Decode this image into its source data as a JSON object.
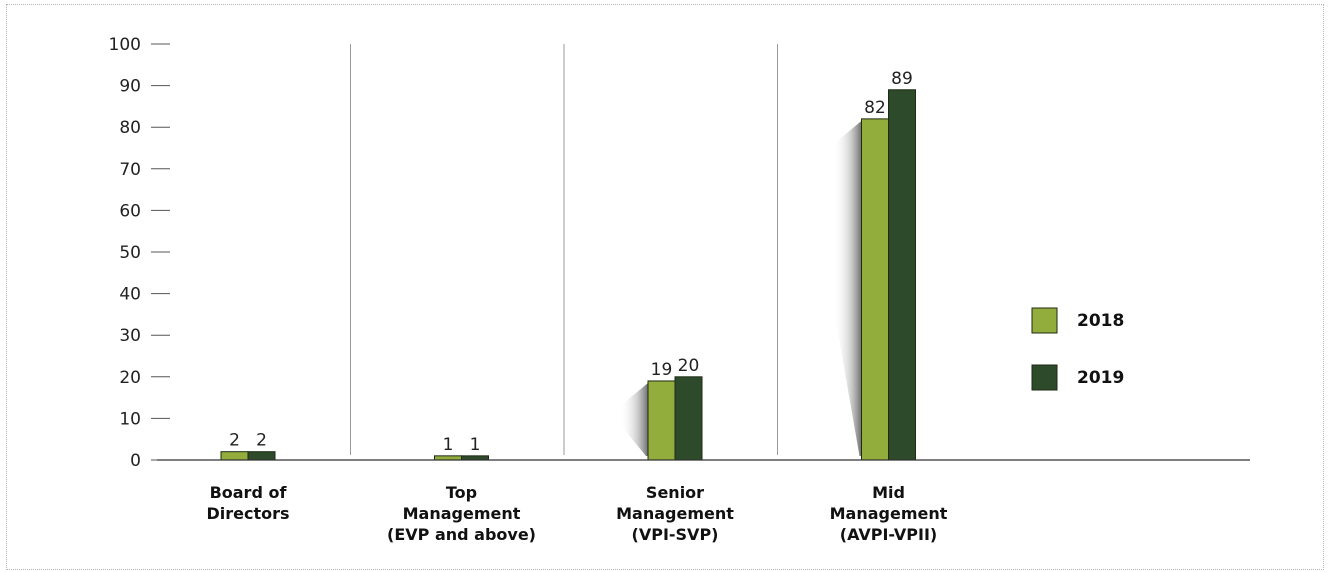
{
  "chart_data": {
    "type": "bar",
    "categories": [
      [
        "Board of",
        "Directors"
      ],
      [
        "Top",
        "Management",
        "(EVP and above)"
      ],
      [
        "Senior",
        "Management",
        "(VPI-SVP)"
      ],
      [
        "Mid",
        "Management",
        "(AVPI-VPII)"
      ]
    ],
    "series": [
      {
        "name": "2018",
        "color": "#93ad3c",
        "values": [
          2,
          1,
          19,
          82
        ]
      },
      {
        "name": "2019",
        "color": "#2d4a2b",
        "values": [
          2,
          1,
          20,
          89
        ]
      }
    ],
    "ylim": [
      0,
      100
    ],
    "yticks": [
      0,
      10,
      20,
      30,
      40,
      50,
      60,
      70,
      80,
      90,
      100
    ],
    "title": "",
    "xlabel": "",
    "ylabel": "",
    "legend_position": "right",
    "category_separators": true
  }
}
